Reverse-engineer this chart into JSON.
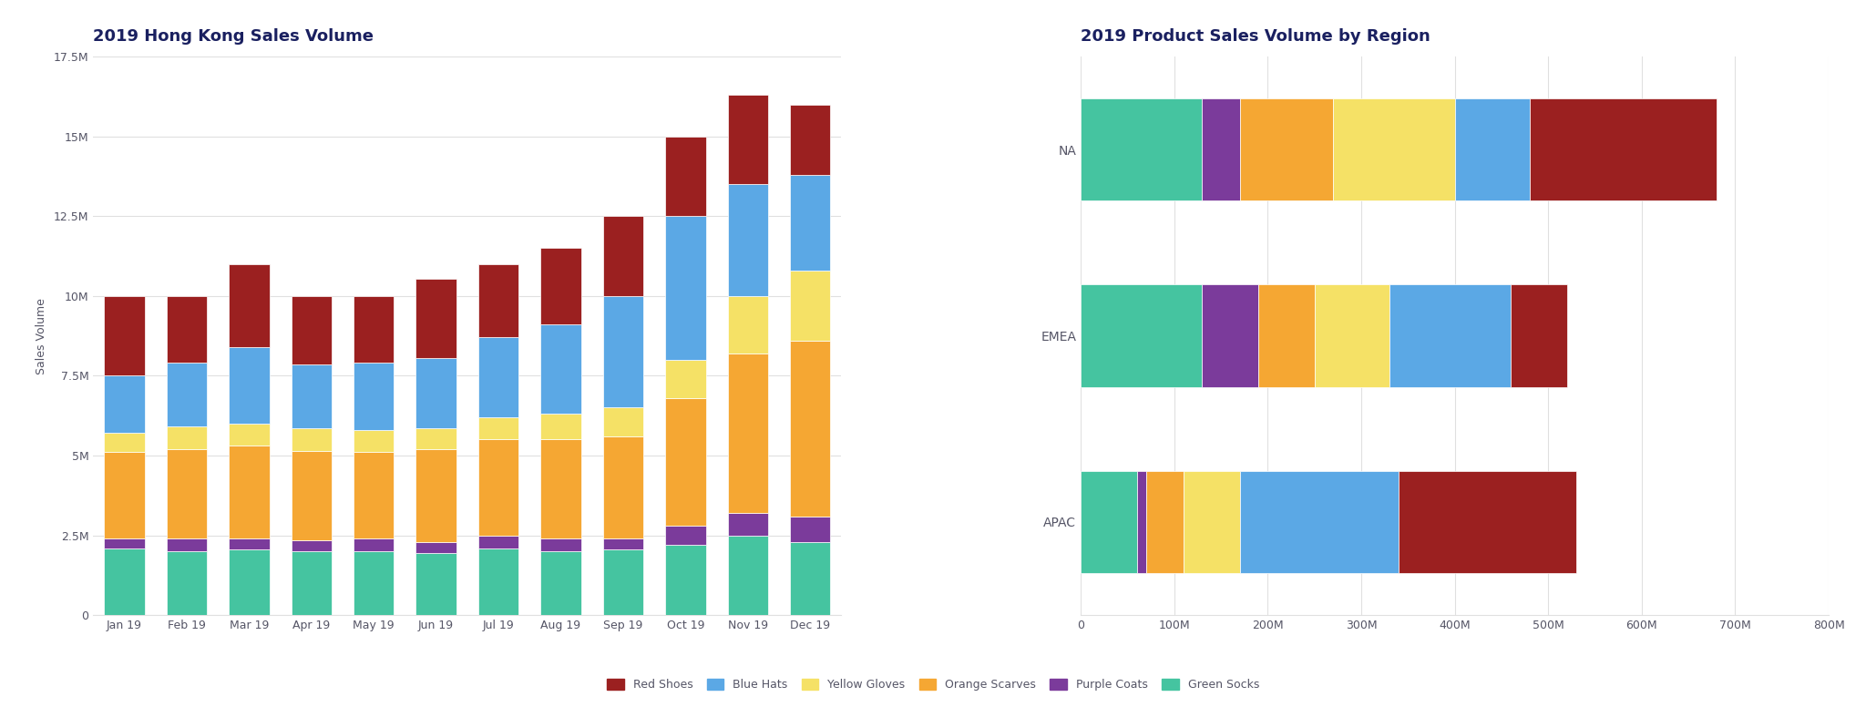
{
  "title_left": "2019 Hong Kong Sales Volume",
  "title_right": "2019 Product Sales Volume by Region",
  "ylabel_left": "Sales Volume",
  "categories_left": [
    "Jan 19",
    "Feb 19",
    "Mar 19",
    "Apr 19",
    "May 19",
    "Jun 19",
    "Jul 19",
    "Aug 19",
    "Sep 19",
    "Oct 19",
    "Nov 19",
    "Dec 19"
  ],
  "series_left": {
    "Green Socks": [
      2100000,
      2000000,
      2050000,
      2000000,
      2000000,
      1950000,
      2100000,
      2000000,
      2050000,
      2200000,
      2500000,
      2300000
    ],
    "Purple Coats": [
      300000,
      400000,
      350000,
      350000,
      400000,
      350000,
      400000,
      400000,
      350000,
      600000,
      700000,
      800000
    ],
    "Orange Scarves": [
      2700000,
      2800000,
      2900000,
      2800000,
      2700000,
      2900000,
      3000000,
      3100000,
      3200000,
      4000000,
      5000000,
      5500000
    ],
    "Yellow Gloves": [
      600000,
      700000,
      700000,
      700000,
      700000,
      650000,
      700000,
      800000,
      900000,
      1200000,
      1800000,
      2200000
    ],
    "Blue Hats": [
      1800000,
      2000000,
      2400000,
      2000000,
      2100000,
      2200000,
      2500000,
      2800000,
      3500000,
      4500000,
      3500000,
      3000000
    ],
    "Red Shoes": [
      2500000,
      2100000,
      2600000,
      2150000,
      2100000,
      2500000,
      2300000,
      2400000,
      2500000,
      2500000,
      2800000,
      2200000
    ]
  },
  "ylim_left": [
    0,
    17500000
  ],
  "yticks_left": [
    0,
    2500000,
    5000000,
    7500000,
    10000000,
    12500000,
    15000000,
    17500000
  ],
  "ytick_labels_left": [
    "0",
    "2.5M",
    "5M",
    "7.5M",
    "10M",
    "12.5M",
    "15M",
    "17.5M"
  ],
  "categories_right": [
    "NA",
    "EMEA",
    "APAC"
  ],
  "series_right": {
    "Green Socks": [
      130000000,
      130000000,
      60000000
    ],
    "Purple Coats": [
      40000000,
      60000000,
      10000000
    ],
    "Orange Scarves": [
      100000000,
      60000000,
      40000000
    ],
    "Yellow Gloves": [
      130000000,
      80000000,
      60000000
    ],
    "Blue Hats": [
      80000000,
      130000000,
      170000000
    ],
    "Red Shoes": [
      200000000,
      60000000,
      190000000
    ]
  },
  "xlim_right": [
    0,
    800000000
  ],
  "xticks_right": [
    0,
    100000000,
    200000000,
    300000000,
    400000000,
    500000000,
    600000000,
    700000000,
    800000000
  ],
  "xtick_labels_right": [
    "0",
    "100M",
    "200M",
    "300M",
    "400M",
    "500M",
    "600M",
    "700M",
    "800M"
  ],
  "colors": {
    "Red Shoes": "#9B2020",
    "Blue Hats": "#5BA8E5",
    "Yellow Gloves": "#F5E166",
    "Orange Scarves": "#F5A733",
    "Purple Coats": "#7B3B9B",
    "Green Socks": "#45C4A0"
  },
  "stack_order": [
    "Green Socks",
    "Purple Coats",
    "Orange Scarves",
    "Yellow Gloves",
    "Blue Hats",
    "Red Shoes"
  ],
  "legend_order": [
    "Red Shoes",
    "Blue Hats",
    "Yellow Gloves",
    "Orange Scarves",
    "Purple Coats",
    "Green Socks"
  ],
  "background_color": "#FFFFFF",
  "title_color": "#1a2060",
  "tick_color": "#555566",
  "grid_color": "#e0e0e0",
  "title_fontsize": 13,
  "axis_label_fontsize": 9,
  "tick_fontsize": 9,
  "legend_fontsize": 9
}
